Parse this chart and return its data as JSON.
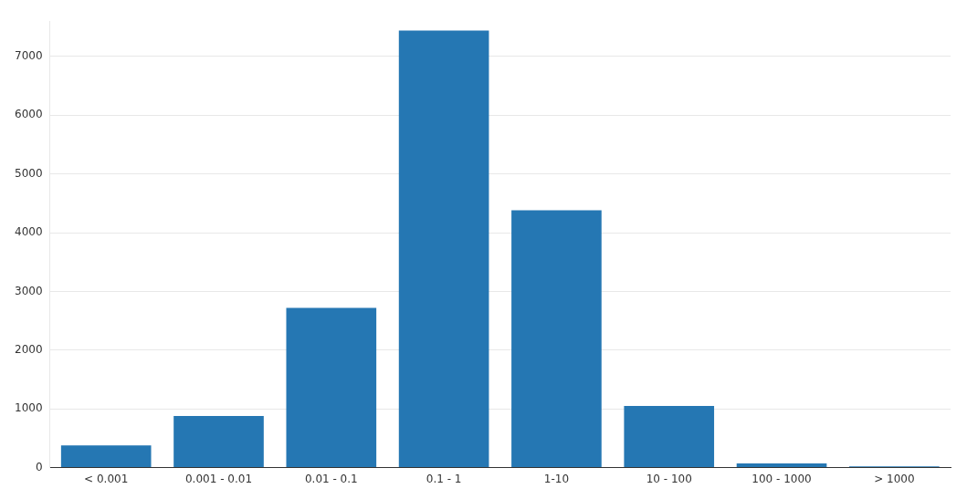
{
  "chart_data": {
    "type": "bar",
    "categories": [
      "< 0.001",
      "0.001 - 0.01",
      "0.01 - 0.1",
      "0.1 - 1",
      "1-10",
      "10 - 100",
      "100 - 1000",
      "> 1000"
    ],
    "values": [
      380,
      880,
      2720,
      7440,
      4380,
      1050,
      70,
      20
    ],
    "color": "#2577b3",
    "ylim": [
      0,
      7600
    ],
    "yticks": [
      0,
      1000,
      2000,
      3000,
      4000,
      5000,
      6000,
      7000
    ],
    "grid": "y",
    "legend": false
  }
}
